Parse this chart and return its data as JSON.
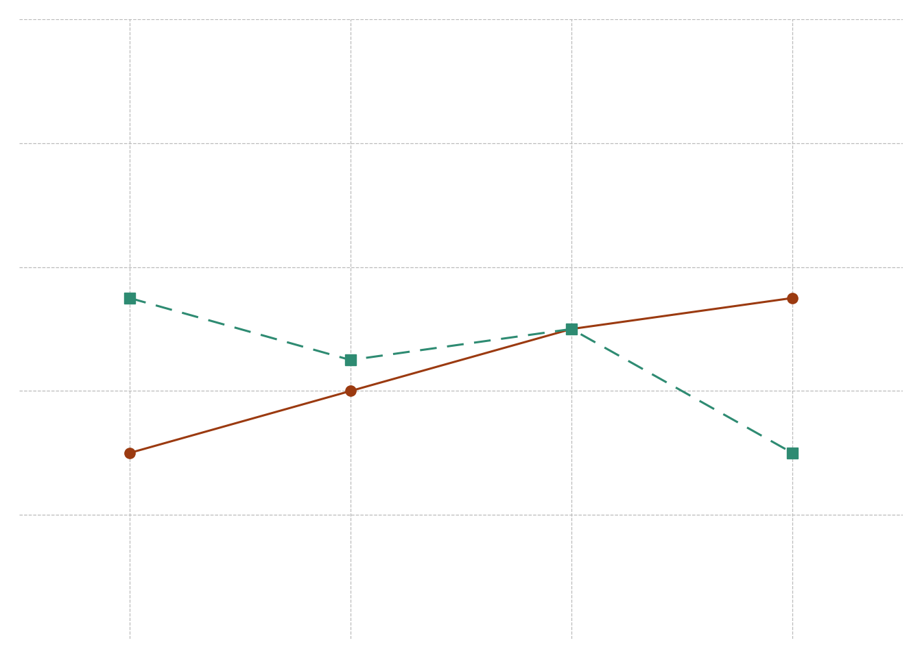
{
  "x": [
    1,
    2,
    3,
    4
  ],
  "line1_y": [
    3,
    4,
    5,
    5.5
  ],
  "line2_y": [
    5.5,
    4.5,
    5,
    3
  ],
  "line1_color": "#9B3A10",
  "line2_color": "#2E8B72",
  "line1_marker": "o",
  "line2_marker": "s",
  "line1_style": "-",
  "line2_style": "--",
  "marker_size": 11,
  "linewidth": 2.2,
  "grid_color": "#bbbbbb",
  "background_color": "#ffffff",
  "ylim": [
    0,
    10
  ],
  "xlim": [
    0.5,
    4.5
  ],
  "xtick_positions": [
    1,
    2,
    3,
    4
  ],
  "ytick_positions": [
    2,
    4,
    6,
    8,
    10
  ]
}
